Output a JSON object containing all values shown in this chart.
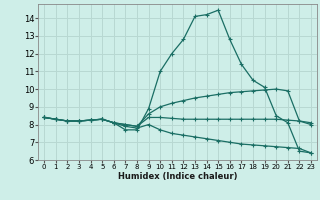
{
  "title": "",
  "xlabel": "Humidex (Indice chaleur)",
  "xlim": [
    -0.5,
    23.5
  ],
  "ylim": [
    6,
    14.8
  ],
  "yticks": [
    6,
    7,
    8,
    9,
    10,
    11,
    12,
    13,
    14
  ],
  "xticks": [
    0,
    1,
    2,
    3,
    4,
    5,
    6,
    7,
    8,
    9,
    10,
    11,
    12,
    13,
    14,
    15,
    16,
    17,
    18,
    19,
    20,
    21,
    22,
    23
  ],
  "bg_color": "#ceeee8",
  "grid_color": "#b8d8d2",
  "line_color": "#1a6e64",
  "lines": [
    [
      8.4,
      8.3,
      8.2,
      8.2,
      8.25,
      8.3,
      8.1,
      7.7,
      7.7,
      8.9,
      11.0,
      12.0,
      12.8,
      14.1,
      14.2,
      14.45,
      12.8,
      11.4,
      10.5,
      10.1,
      8.5,
      8.1,
      6.5,
      6.4
    ],
    [
      8.4,
      8.3,
      8.2,
      8.2,
      8.25,
      8.3,
      8.1,
      8.0,
      7.9,
      8.6,
      9.0,
      9.2,
      9.35,
      9.5,
      9.6,
      9.7,
      9.8,
      9.85,
      9.9,
      9.95,
      10.0,
      9.9,
      8.2,
      8.0
    ],
    [
      8.4,
      8.3,
      8.2,
      8.2,
      8.25,
      8.3,
      8.1,
      8.0,
      7.9,
      8.4,
      8.4,
      8.35,
      8.3,
      8.3,
      8.3,
      8.3,
      8.3,
      8.3,
      8.3,
      8.3,
      8.3,
      8.25,
      8.2,
      8.1
    ],
    [
      8.4,
      8.3,
      8.2,
      8.2,
      8.25,
      8.3,
      8.1,
      7.9,
      7.8,
      8.0,
      7.7,
      7.5,
      7.4,
      7.3,
      7.2,
      7.1,
      7.0,
      6.9,
      6.85,
      6.8,
      6.75,
      6.7,
      6.65,
      6.4
    ]
  ]
}
